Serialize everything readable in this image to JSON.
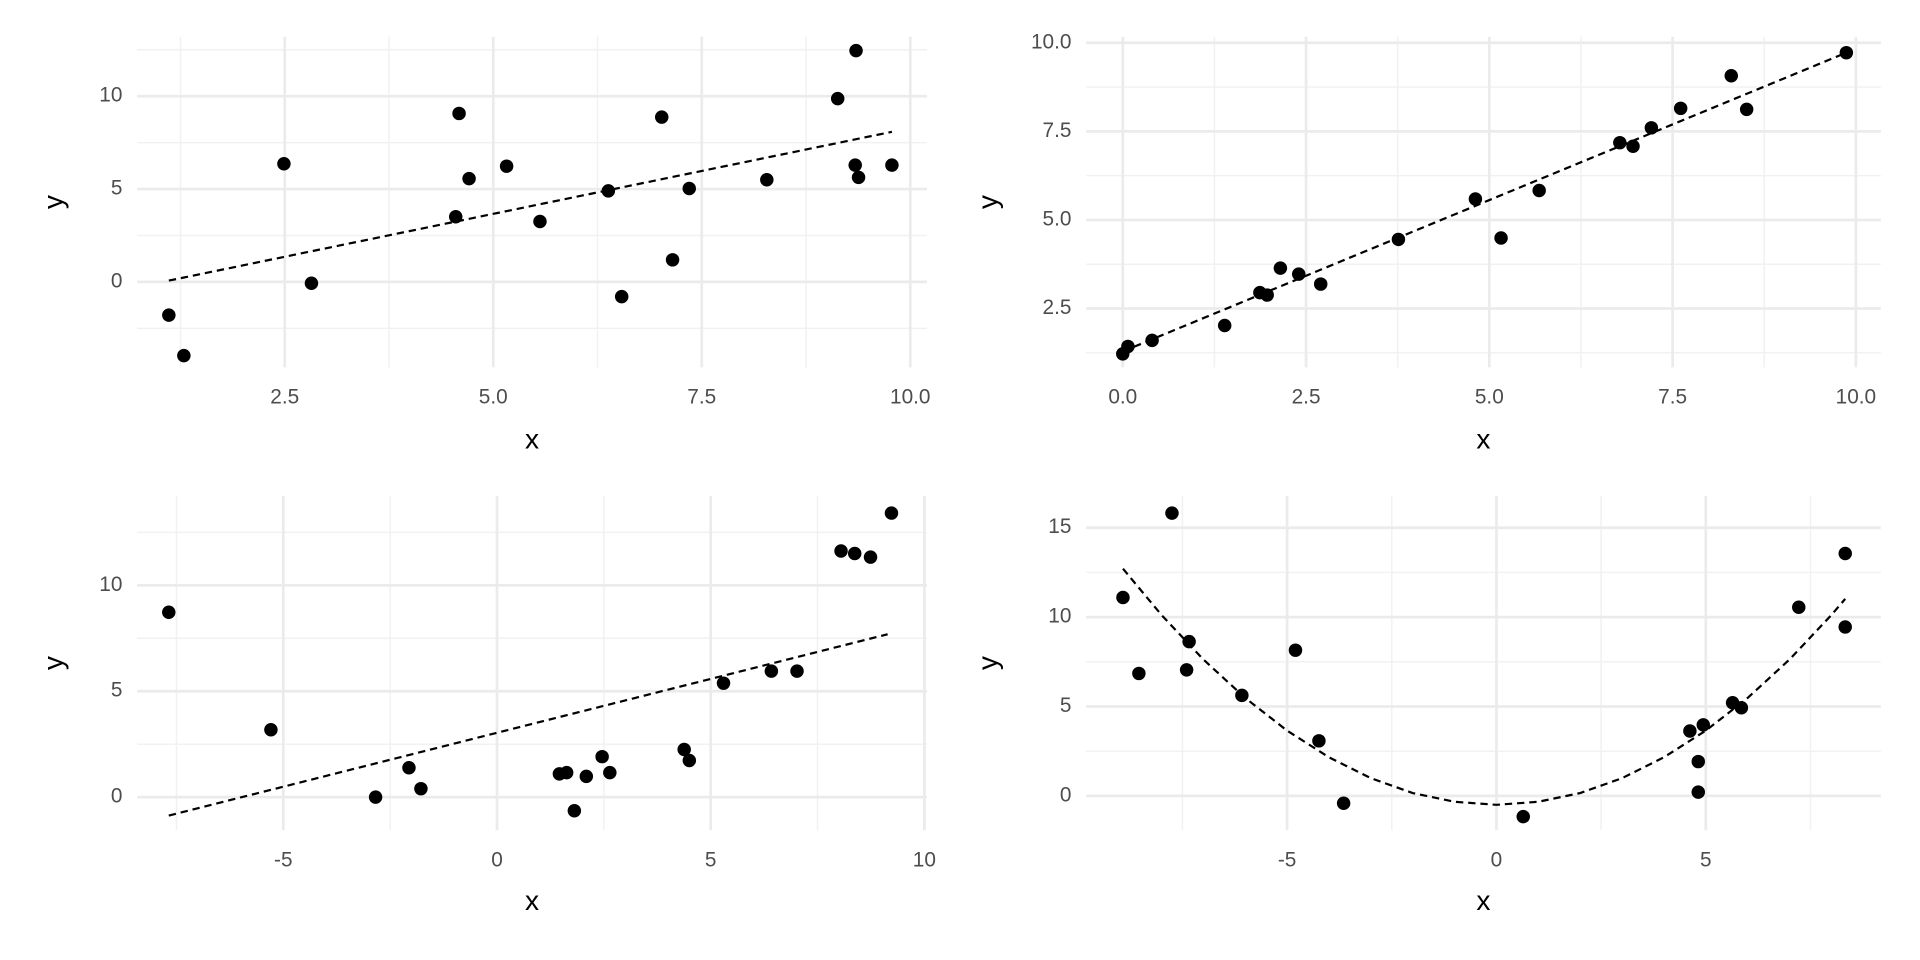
{
  "chart_data": [
    {
      "type": "scatter",
      "x_label": "x",
      "y_label": "y",
      "color": "#000000",
      "grid": true,
      "x": [
        1.11,
        1.29,
        2.49,
        2.82,
        4.55,
        4.59,
        4.71,
        5.16,
        5.56,
        6.38,
        6.54,
        7.02,
        7.15,
        7.35,
        8.28,
        9.13,
        9.35,
        9.34,
        9.38,
        9.78
      ],
      "y": [
        -1.79,
        -3.97,
        6.36,
        -0.07,
        3.51,
        9.07,
        5.56,
        6.23,
        3.25,
        4.9,
        -0.79,
        8.87,
        1.19,
        5.03,
        5.5,
        9.87,
        12.45,
        6.29,
        5.63,
        6.29
      ],
      "fit": {
        "style": "dashed",
        "color": "#000000",
        "x": [
          1.11,
          9.78
        ],
        "y": [
          0.07,
          8.08
        ]
      },
      "xlim": [
        0.73,
        10.2
      ],
      "ylim": [
        -4.6,
        13.2
      ],
      "xticks": [
        2.5,
        {
          "value": 5,
          "label": "5.0"
        },
        7.5,
        {
          "value": 10,
          "label": "10.0"
        }
      ],
      "yticks": [
        0,
        5,
        10
      ]
    },
    {
      "type": "scatter",
      "x_label": "x",
      "y_label": "y",
      "color": "#000000",
      "grid": true,
      "x": [
        0.0,
        0.07,
        0.4,
        1.39,
        1.87,
        1.97,
        2.15,
        2.4,
        2.7,
        3.76,
        4.81,
        5.16,
        5.68,
        6.78,
        6.96,
        7.21,
        7.61,
        8.3,
        8.51,
        9.87
      ],
      "y": [
        1.22,
        1.43,
        1.6,
        2.02,
        2.95,
        2.88,
        3.64,
        3.47,
        3.19,
        4.45,
        5.59,
        4.49,
        5.83,
        7.18,
        7.08,
        7.6,
        8.15,
        9.07,
        8.12,
        9.72
      ],
      "fit": {
        "style": "dashed",
        "color": "#000000",
        "x": [
          0.0,
          9.87
        ],
        "y": [
          1.29,
          9.72
        ]
      },
      "xlim": [
        -0.5,
        10.34
      ],
      "ylim": [
        0.84,
        10.17
      ],
      "xticks": [
        {
          "value": 0,
          "label": "0.0"
        },
        2.5,
        {
          "value": 5,
          "label": "5.0"
        },
        7.5,
        {
          "value": 10,
          "label": "10.0"
        }
      ],
      "yticks": [
        2.5,
        {
          "value": 5,
          "label": "5.0"
        },
        7.5,
        {
          "value": 10,
          "label": "10.0"
        }
      ]
    },
    {
      "type": "scatter",
      "x_label": "x",
      "y_label": "y",
      "color": "#000000",
      "grid": true,
      "x": [
        -7.68,
        -5.29,
        -2.84,
        -2.06,
        -1.78,
        1.46,
        1.63,
        1.81,
        2.09,
        2.46,
        2.64,
        4.38,
        4.5,
        5.3,
        6.42,
        7.02,
        8.05,
        8.37,
        8.74,
        9.23
      ],
      "y": [
        8.73,
        3.18,
        0.0,
        1.39,
        0.4,
        1.1,
        1.16,
        -0.64,
        0.98,
        1.91,
        1.16,
        2.25,
        1.73,
        5.38,
        5.95,
        5.95,
        11.62,
        11.5,
        11.33,
        13.41
      ],
      "fit": {
        "style": "dashed",
        "color": "#000000",
        "x": [
          -7.68,
          9.14
        ],
        "y": [
          -0.87,
          7.69
        ]
      },
      "xlim": [
        -8.42,
        10.06
      ],
      "ylim": [
        -1.56,
        14.22
      ],
      "xticks": [
        -5,
        0,
        5,
        10
      ],
      "yticks": [
        0,
        5,
        10
      ]
    },
    {
      "type": "scatter",
      "x_label": "x",
      "y_label": "y",
      "color": "#000000",
      "grid": true,
      "x": [
        -8.92,
        -8.54,
        -7.75,
        -7.4,
        -7.34,
        -6.08,
        -4.8,
        -4.24,
        -3.65,
        0.64,
        4.62,
        4.94,
        4.82,
        4.82,
        5.64,
        5.85,
        7.22,
        8.33,
        8.33
      ],
      "y": [
        11.1,
        6.85,
        15.82,
        7.05,
        8.63,
        5.62,
        8.15,
        3.08,
        -0.41,
        -1.16,
        3.63,
        3.97,
        1.92,
        0.21,
        5.21,
        4.93,
        10.55,
        13.56,
        9.45
      ],
      "fit": {
        "style": "dashed",
        "color": "#000000",
        "x": [
          -8.92,
          -8,
          -7,
          -6,
          -5,
          -4,
          -3,
          -2,
          -1,
          0,
          1,
          2,
          3,
          4,
          5,
          6,
          7,
          8,
          8.33
        ],
        "y": [
          12.71,
          10.12,
          7.63,
          5.48,
          3.65,
          2.16,
          0.99,
          0.16,
          -0.33,
          -0.5,
          -0.33,
          0.16,
          0.99,
          2.16,
          3.65,
          5.48,
          7.63,
          10.12,
          11.02
        ]
      },
      "xlim": [
        -9.8,
        9.18
      ],
      "ylim": [
        -1.92,
        16.78
      ],
      "xticks": [
        -5,
        0,
        5
      ],
      "yticks": [
        0,
        5,
        10,
        15
      ]
    }
  ]
}
